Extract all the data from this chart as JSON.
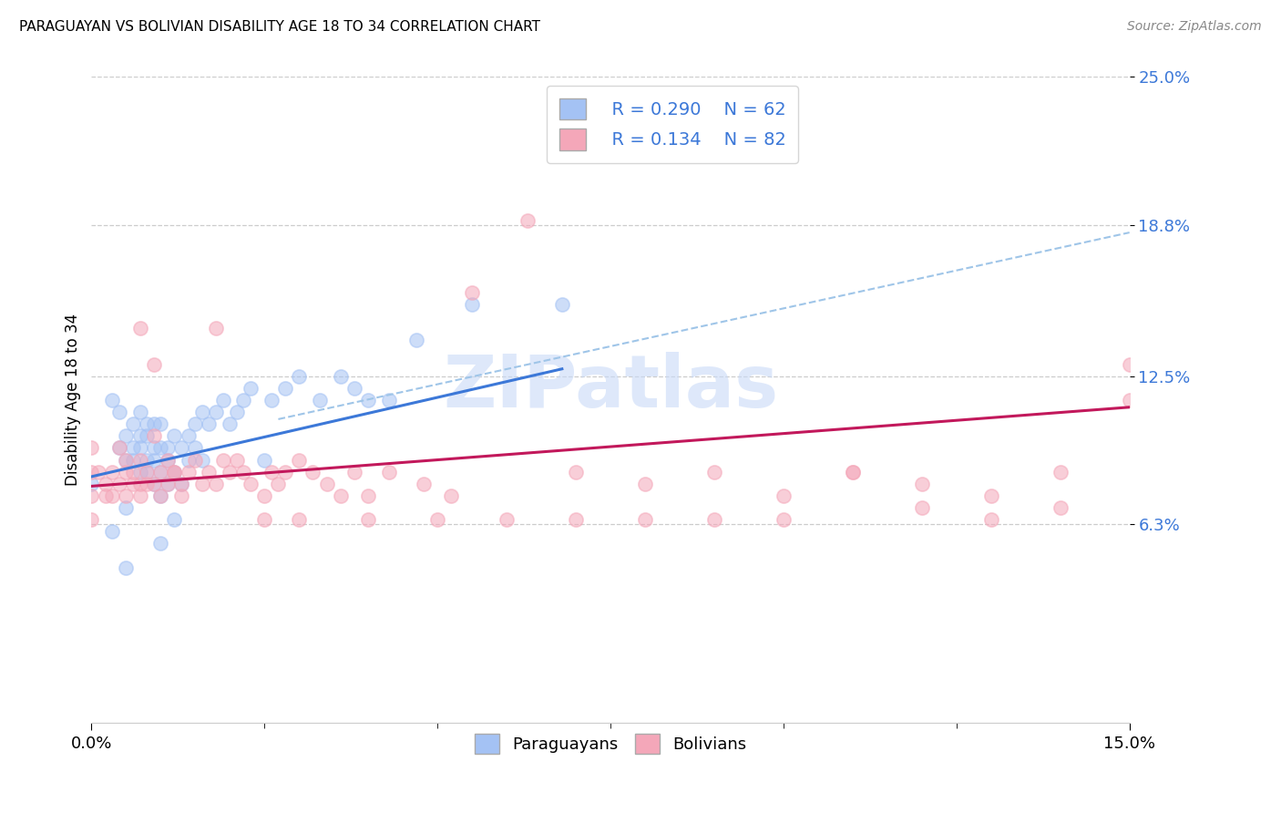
{
  "title": "PARAGUAYAN VS BOLIVIAN DISABILITY AGE 18 TO 34 CORRELATION CHART",
  "source": "Source: ZipAtlas.com",
  "ylabel": "Disability Age 18 to 34",
  "xlim": [
    0.0,
    0.15
  ],
  "ylim": [
    -0.02,
    0.25
  ],
  "ytick_labels": [
    "6.3%",
    "12.5%",
    "18.8%",
    "25.0%"
  ],
  "ytick_vals": [
    0.063,
    0.125,
    0.188,
    0.25
  ],
  "blue_color": "#a4c2f4",
  "pink_color": "#f4a7b9",
  "blue_line_color": "#3c78d8",
  "pink_line_color": "#c2185b",
  "dashed_line_color": "#9fc5e8",
  "watermark_color": "#c9daf8",
  "paraguayan_x": [
    0.0,
    0.003,
    0.004,
    0.004,
    0.005,
    0.005,
    0.005,
    0.006,
    0.006,
    0.006,
    0.007,
    0.007,
    0.007,
    0.007,
    0.008,
    0.008,
    0.008,
    0.008,
    0.009,
    0.009,
    0.009,
    0.009,
    0.01,
    0.01,
    0.01,
    0.01,
    0.011,
    0.011,
    0.011,
    0.012,
    0.012,
    0.013,
    0.013,
    0.014,
    0.014,
    0.015,
    0.015,
    0.016,
    0.016,
    0.017,
    0.018,
    0.019,
    0.02,
    0.021,
    0.022,
    0.023,
    0.025,
    0.026,
    0.028,
    0.03,
    0.033,
    0.036,
    0.038,
    0.04,
    0.043,
    0.047,
    0.055,
    0.068,
    0.003,
    0.005,
    0.01,
    0.012
  ],
  "paraguayan_y": [
    0.08,
    0.115,
    0.11,
    0.095,
    0.1,
    0.09,
    0.07,
    0.095,
    0.105,
    0.09,
    0.1,
    0.095,
    0.085,
    0.11,
    0.1,
    0.09,
    0.105,
    0.085,
    0.095,
    0.105,
    0.09,
    0.08,
    0.095,
    0.105,
    0.085,
    0.075,
    0.09,
    0.095,
    0.08,
    0.1,
    0.085,
    0.095,
    0.08,
    0.1,
    0.09,
    0.095,
    0.105,
    0.11,
    0.09,
    0.105,
    0.11,
    0.115,
    0.105,
    0.11,
    0.115,
    0.12,
    0.09,
    0.115,
    0.12,
    0.125,
    0.115,
    0.125,
    0.12,
    0.115,
    0.115,
    0.14,
    0.155,
    0.155,
    0.06,
    0.045,
    0.055,
    0.065
  ],
  "bolivian_x": [
    0.0,
    0.0,
    0.0,
    0.0,
    0.001,
    0.002,
    0.002,
    0.003,
    0.003,
    0.004,
    0.004,
    0.005,
    0.005,
    0.005,
    0.006,
    0.006,
    0.007,
    0.007,
    0.007,
    0.008,
    0.008,
    0.009,
    0.009,
    0.01,
    0.01,
    0.011,
    0.011,
    0.012,
    0.013,
    0.013,
    0.014,
    0.015,
    0.016,
    0.017,
    0.018,
    0.019,
    0.02,
    0.021,
    0.022,
    0.023,
    0.025,
    0.026,
    0.027,
    0.028,
    0.03,
    0.032,
    0.034,
    0.036,
    0.038,
    0.04,
    0.043,
    0.048,
    0.052,
    0.055,
    0.063,
    0.07,
    0.08,
    0.09,
    0.1,
    0.11,
    0.12,
    0.13,
    0.14,
    0.15,
    0.007,
    0.009,
    0.012,
    0.018,
    0.025,
    0.03,
    0.04,
    0.05,
    0.06,
    0.07,
    0.08,
    0.09,
    0.1,
    0.11,
    0.12,
    0.13,
    0.14,
    0.15
  ],
  "bolivian_y": [
    0.085,
    0.095,
    0.075,
    0.065,
    0.085,
    0.08,
    0.075,
    0.085,
    0.075,
    0.095,
    0.08,
    0.085,
    0.075,
    0.09,
    0.085,
    0.08,
    0.09,
    0.08,
    0.075,
    0.085,
    0.08,
    0.1,
    0.08,
    0.085,
    0.075,
    0.09,
    0.08,
    0.085,
    0.08,
    0.075,
    0.085,
    0.09,
    0.08,
    0.085,
    0.08,
    0.09,
    0.085,
    0.09,
    0.085,
    0.08,
    0.075,
    0.085,
    0.08,
    0.085,
    0.09,
    0.085,
    0.08,
    0.075,
    0.085,
    0.075,
    0.085,
    0.08,
    0.075,
    0.16,
    0.19,
    0.085,
    0.08,
    0.085,
    0.075,
    0.085,
    0.08,
    0.075,
    0.085,
    0.13,
    0.145,
    0.13,
    0.085,
    0.145,
    0.065,
    0.065,
    0.065,
    0.065,
    0.065,
    0.065,
    0.065,
    0.065,
    0.065,
    0.085,
    0.07,
    0.065,
    0.07,
    0.115
  ],
  "par_line_x": [
    0.0,
    0.068
  ],
  "par_line_y": [
    0.083,
    0.128
  ],
  "bol_line_x": [
    0.0,
    0.15
  ],
  "bol_line_y": [
    0.079,
    0.112
  ],
  "dash_line_x": [
    0.027,
    0.15
  ],
  "dash_line_y": [
    0.107,
    0.185
  ],
  "legend_r1": "R = 0.290",
  "legend_n1": "N = 62",
  "legend_r2": "R = 0.134",
  "legend_n2": "N = 82"
}
